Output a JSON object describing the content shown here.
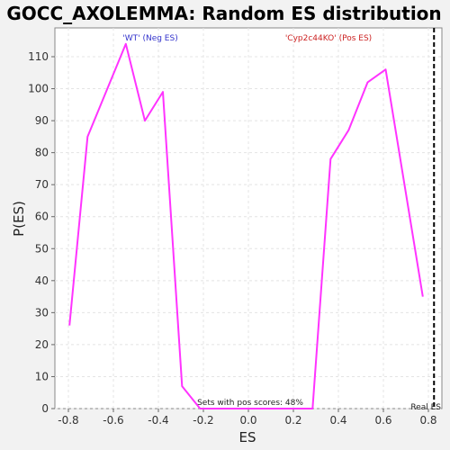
{
  "chart_data": {
    "type": "line",
    "title": "GOCC_AXOLEMMA: Random ES distribution",
    "xlabel": "ES",
    "ylabel": "P(ES)",
    "xlim": [
      -0.86,
      0.86
    ],
    "ylim": [
      0,
      119
    ],
    "xticks": [
      -0.8,
      -0.6,
      -0.4,
      -0.2,
      0.0,
      0.2,
      0.4,
      0.6,
      0.8
    ],
    "xtick_labels": [
      "-0.8",
      "-0.6",
      "-0.4",
      "-0.2",
      "0.0",
      "0.2",
      "0.4",
      "0.6",
      "0.8"
    ],
    "yticks": [
      0,
      10,
      20,
      30,
      40,
      50,
      60,
      70,
      80,
      90,
      100,
      110
    ],
    "ytick_labels": [
      "0",
      "10",
      "20",
      "30",
      "40",
      "50",
      "60",
      "70",
      "80",
      "90",
      "100",
      "110"
    ],
    "grid": true,
    "series": [
      {
        "color": "#ff33ff",
        "x": [
          -0.795,
          -0.715,
          -0.545,
          -0.46,
          -0.38,
          -0.295,
          -0.215,
          0.285,
          0.365,
          0.445,
          0.53,
          0.61,
          0.775
        ],
        "y": [
          26,
          85,
          114,
          90,
          99,
          7,
          0,
          0,
          78,
          87,
          102,
          106,
          35
        ]
      }
    ],
    "real_es": {
      "x": 0.825,
      "label": "Real ES",
      "color": "#000000"
    },
    "annotations": {
      "neg_label": "'WT' (Neg ES)",
      "neg_color": "#3333cc",
      "pos_label": "'Cyp2c44KO' (Pos ES)",
      "pos_color": "#cc2222",
      "pos_scores": "Sets with pos scores: 48%"
    }
  }
}
